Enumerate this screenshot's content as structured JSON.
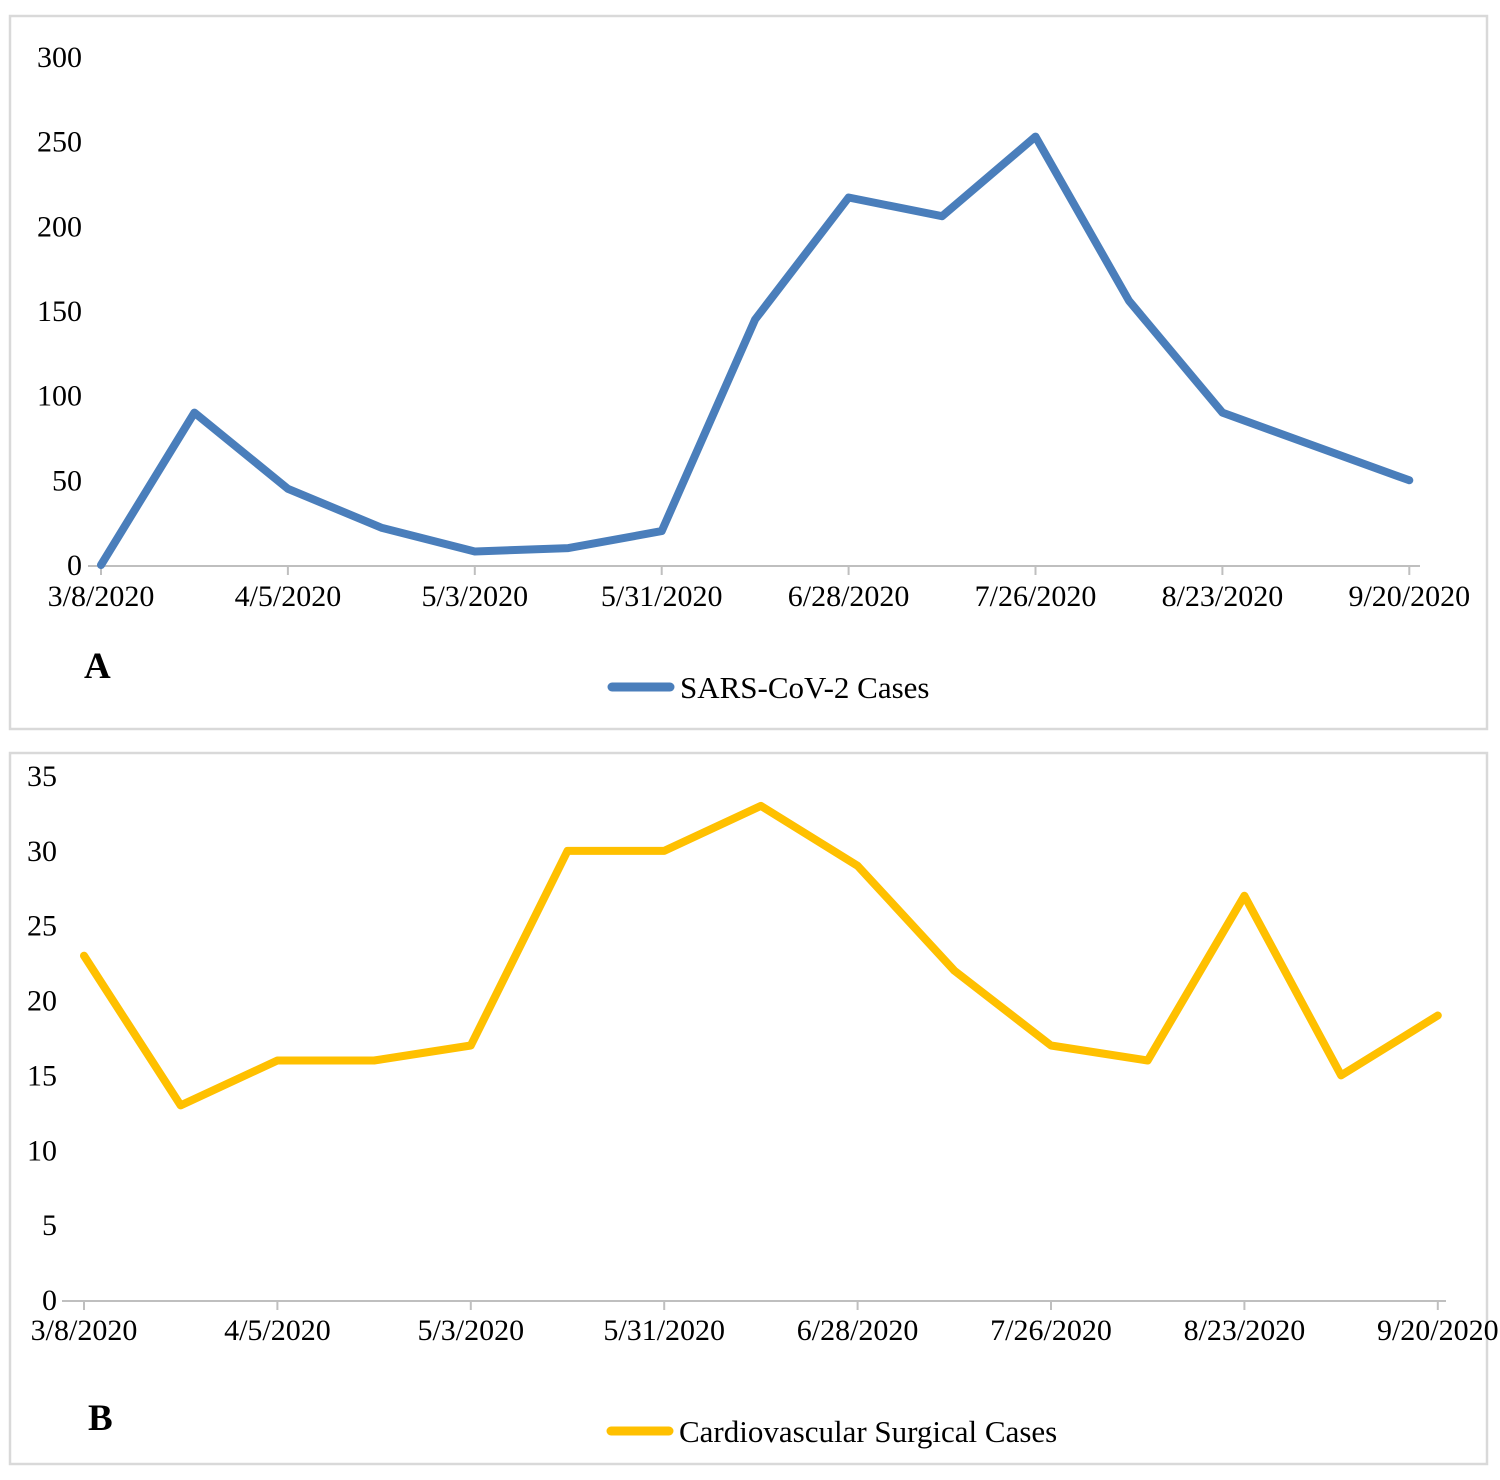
{
  "figure_title": "",
  "colors": {
    "background": "#ffffff",
    "panel_border": "#d9d9d9",
    "axis": "#bfbfbf",
    "text": "#000000",
    "series_a": "#4A7EBB",
    "series_b": "#FFC000"
  },
  "chart_data": [
    {
      "type": "line",
      "panel_label": "A",
      "legend": "SARS-CoV-2 Cases",
      "legend_position": "bottom",
      "line_color": "#4A7EBB",
      "grid": false,
      "x": [
        "3/8/2020",
        "3/22/2020",
        "4/5/2020",
        "4/19/2020",
        "5/3/2020",
        "5/17/2020",
        "5/31/2020",
        "6/14/2020",
        "6/28/2020",
        "7/12/2020",
        "7/26/2020",
        "8/9/2020",
        "8/23/2020",
        "9/6/2020",
        "9/20/2020"
      ],
      "values": [
        0,
        90,
        45,
        22,
        8,
        10,
        20,
        145,
        217,
        206,
        253,
        156,
        90,
        70,
        50
      ],
      "x_tick_labels": [
        "3/8/2020",
        "4/5/2020",
        "5/3/2020",
        "5/31/2020",
        "6/28/2020",
        "7/26/2020",
        "8/23/2020",
        "9/20/2020"
      ],
      "y_ticks": [
        0,
        50,
        100,
        150,
        200,
        250,
        300
      ],
      "ylim": [
        0,
        300
      ],
      "xlabel": "",
      "ylabel": ""
    },
    {
      "type": "line",
      "panel_label": "B",
      "legend": "Cardiovascular Surgical Cases",
      "legend_position": "bottom",
      "line_color": "#FFC000",
      "grid": false,
      "x": [
        "3/8/2020",
        "3/22/2020",
        "4/5/2020",
        "4/19/2020",
        "5/3/2020",
        "5/17/2020",
        "5/31/2020",
        "6/14/2020",
        "6/28/2020",
        "7/12/2020",
        "7/26/2020",
        "8/9/2020",
        "8/23/2020",
        "9/6/2020",
        "9/20/2020"
      ],
      "values": [
        23,
        13,
        16,
        16,
        17,
        30,
        30,
        33,
        29,
        22,
        17,
        16,
        27,
        15,
        19
      ],
      "x_tick_labels": [
        "3/8/2020",
        "4/5/2020",
        "5/3/2020",
        "5/31/2020",
        "6/28/2020",
        "7/26/2020",
        "8/23/2020",
        "9/20/2020"
      ],
      "y_ticks": [
        0,
        5,
        10,
        15,
        20,
        25,
        30,
        35
      ],
      "ylim": [
        0,
        35
      ],
      "xlabel": "",
      "ylabel": ""
    }
  ]
}
